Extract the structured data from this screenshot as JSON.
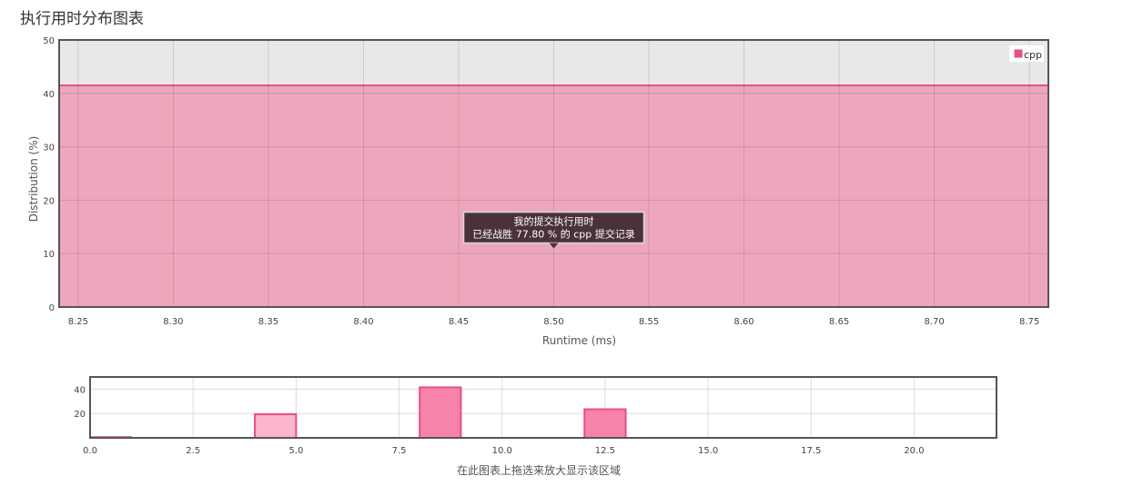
{
  "page": {
    "title": "执行用时分布图表"
  },
  "colors": {
    "accent": "#e8507f",
    "fill": "#eda7bc",
    "nav_bar": "#f783a8",
    "nav_bar_light": "#fbb6cb",
    "plot_bg": "#e8e8e8",
    "tooltip_bg": "#4a3238"
  },
  "chart_data": [
    {
      "type": "area",
      "xlabel": "Runtime (ms)",
      "ylabel": "Distribution (%)",
      "xlim": [
        8.24,
        8.76
      ],
      "ylim": [
        0,
        50
      ],
      "x_ticks": [
        "8.25",
        "8.30",
        "8.35",
        "8.40",
        "8.45",
        "8.50",
        "8.55",
        "8.60",
        "8.65",
        "8.70",
        "8.75"
      ],
      "y_ticks": [
        "0",
        "10",
        "20",
        "30",
        "40",
        "50"
      ],
      "grid": true,
      "legend": {
        "position": "top-right",
        "entries": [
          "cpp"
        ]
      },
      "series": [
        {
          "name": "cpp",
          "x": [
            8.24,
            8.76
          ],
          "values": [
            41.5,
            41.5
          ]
        }
      ],
      "annotation": {
        "x": 8.5,
        "y": 11.3,
        "line1": "我的提交执行用时",
        "line2": "已经战胜 77.80 % 的 cpp 提交记录"
      }
    },
    {
      "type": "bar",
      "xlabel": "在此图表上拖选来放大显示该区域",
      "xlim": [
        0,
        22
      ],
      "ylim": [
        0,
        50
      ],
      "x_ticks": [
        "0.0",
        "2.5",
        "5.0",
        "7.5",
        "10.0",
        "12.5",
        "15.0",
        "17.5",
        "20.0"
      ],
      "y_ticks": [
        "20",
        "40"
      ],
      "grid": true,
      "bars": [
        {
          "x0": 0,
          "x1": 1,
          "value": 0.6,
          "highlight": false
        },
        {
          "x0": 4,
          "x1": 5,
          "value": 19.4,
          "highlight": false
        },
        {
          "x0": 8,
          "x1": 9,
          "value": 41.5,
          "highlight": true
        },
        {
          "x0": 12,
          "x1": 13,
          "value": 23.5,
          "highlight": true
        }
      ]
    }
  ]
}
